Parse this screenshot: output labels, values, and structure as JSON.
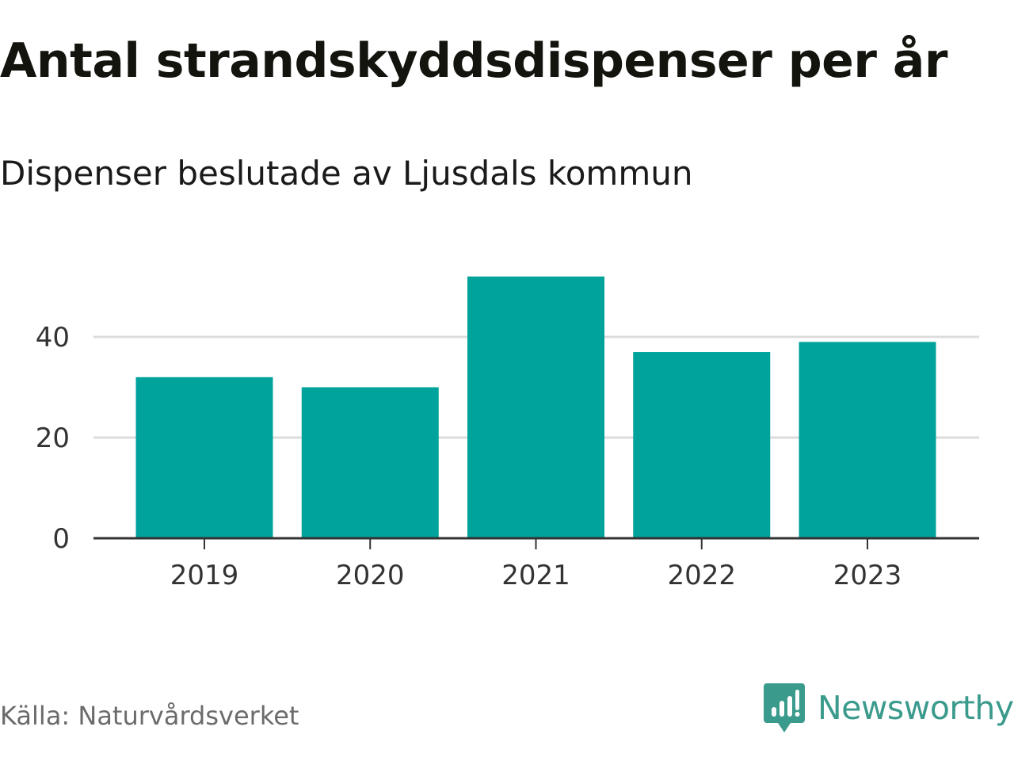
{
  "title": "Antal strandskyddsdispenser per år",
  "subtitle": "Dispenser beslutade av Ljusdals kommun",
  "source": "Källa: Naturvårdsverket",
  "brand": {
    "name": "Newsworthy",
    "icon": "newsworthy-logo-icon",
    "color": "#3a9a8c"
  },
  "colors": {
    "bar": "#00a39b",
    "grid": "#dcdcdc",
    "axis": "#333333"
  },
  "chart_data": {
    "type": "bar",
    "title": "Antal strandskyddsdispenser per år",
    "subtitle": "Dispenser beslutade av Ljusdals kommun",
    "xlabel": "",
    "ylabel": "",
    "categories": [
      "2019",
      "2020",
      "2021",
      "2022",
      "2023"
    ],
    "values": [
      32,
      30,
      52,
      37,
      39
    ],
    "ylim": [
      0,
      52
    ],
    "yticks": [
      0,
      20,
      40
    ],
    "ytick_labels": [
      "0",
      "20",
      "40"
    ],
    "grid": true,
    "legend": "none"
  }
}
